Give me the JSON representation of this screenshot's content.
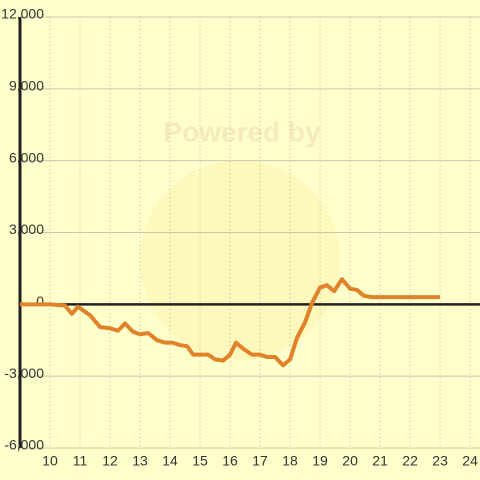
{
  "chart_data": {
    "type": "line",
    "watermark": "Powered by",
    "x": [
      9.0,
      10.0,
      10.5,
      10.73,
      10.93,
      11.33,
      11.67,
      12.0,
      12.27,
      12.5,
      12.77,
      13.0,
      13.27,
      13.57,
      13.83,
      14.07,
      14.33,
      14.57,
      14.77,
      15.0,
      15.27,
      15.5,
      15.77,
      16.0,
      16.2,
      16.43,
      16.73,
      17.0,
      17.23,
      17.5,
      17.77,
      18.0,
      18.23,
      18.5,
      18.73,
      19.0,
      19.23,
      19.47,
      19.73,
      20.0,
      20.23,
      20.47,
      20.73,
      23.0
    ],
    "series": [
      {
        "color": "#e0822a",
        "values": [
          0,
          0,
          -50,
          -400,
          -100,
          -450,
          -950,
          -1000,
          -1100,
          -800,
          -1150,
          -1250,
          -1200,
          -1500,
          -1600,
          -1600,
          -1700,
          -1750,
          -2100,
          -2100,
          -2100,
          -2300,
          -2350,
          -2100,
          -1600,
          -1850,
          -2100,
          -2100,
          -2200,
          -2200,
          -2550,
          -2300,
          -1400,
          -750,
          50,
          700,
          800,
          550,
          1050,
          650,
          600,
          350,
          300,
          300
        ]
      }
    ],
    "xlim": [
      9,
      24.33
    ],
    "xticks": [
      10,
      11,
      12,
      13,
      14,
      15,
      16,
      17,
      18,
      19,
      20,
      21,
      22,
      23,
      24
    ],
    "ylim": [
      -6000,
      12000
    ],
    "yticks": [
      {
        "value": -6000,
        "label": "-6,000"
      },
      {
        "value": -3000,
        "label": "-3,000"
      },
      0,
      {
        "value": 3000,
        "label": "3,000"
      },
      {
        "value": 6000,
        "label": "6,000"
      },
      {
        "value": 9000,
        "label": "9,000"
      },
      {
        "value": 12000,
        "label": "12,000"
      }
    ],
    "grid": true
  }
}
